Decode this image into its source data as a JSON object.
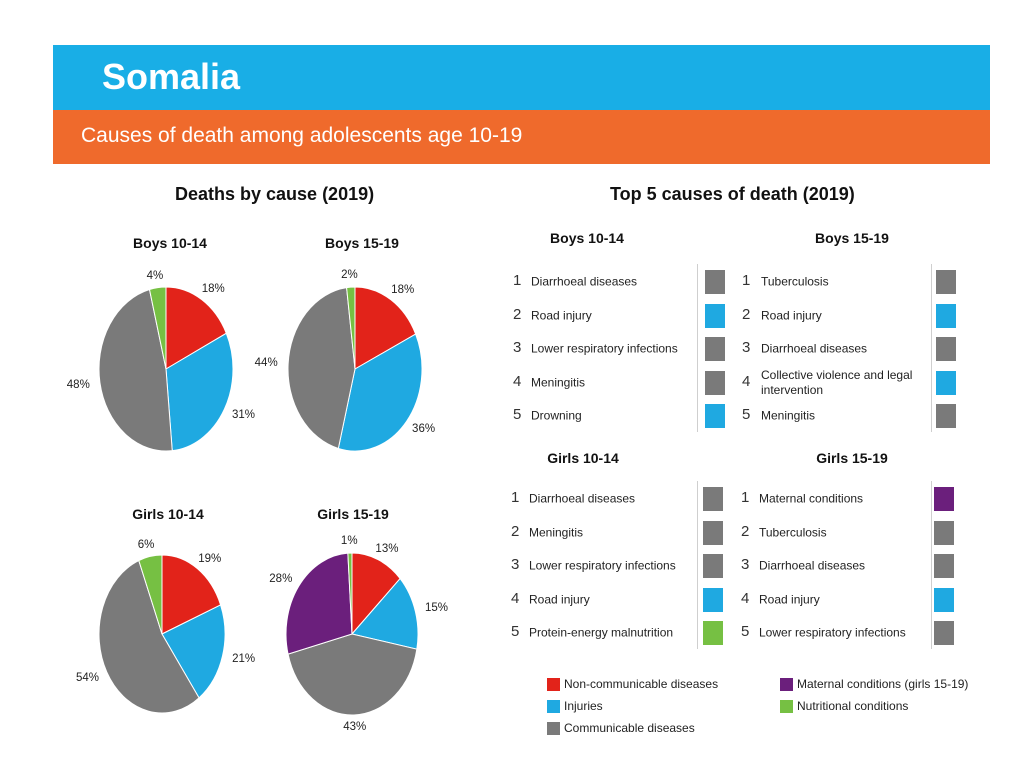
{
  "header": {
    "country": "Somalia",
    "subtitle": "Causes of death among adolescents age 10-19"
  },
  "colors": {
    "header_blue": "#19aee6",
    "header_orange": "#ef6a2c",
    "ncd": "#e2231a",
    "injuries": "#1fa9e1",
    "communicable": "#7a7a7a",
    "maternal": "#6b1f7c",
    "nutritional": "#76c043"
  },
  "left_title": "Deaths by cause (2019)",
  "right_title": "Top 5 causes of death (2019)",
  "chart_data": [
    {
      "type": "pie",
      "title": "Boys 10-14",
      "slices": [
        {
          "name": "Non-communicable diseases",
          "value": 18,
          "label": "18%",
          "color_key": "ncd"
        },
        {
          "name": "Injuries",
          "value": 31,
          "label": "31%",
          "color_key": "injuries"
        },
        {
          "name": "Communicable diseases",
          "value": 48,
          "label": "48%",
          "color_key": "communicable"
        },
        {
          "name": "Nutritional conditions",
          "value": 4,
          "label": "4%",
          "color_key": "nutritional"
        }
      ]
    },
    {
      "type": "pie",
      "title": "Boys 15-19",
      "slices": [
        {
          "name": "Non-communicable diseases",
          "value": 18,
          "label": "18%",
          "color_key": "ncd"
        },
        {
          "name": "Injuries",
          "value": 36,
          "label": "36%",
          "color_key": "injuries"
        },
        {
          "name": "Communicable diseases",
          "value": 44,
          "label": "44%",
          "color_key": "communicable"
        },
        {
          "name": "Nutritional conditions",
          "value": 2,
          "label": "2%",
          "color_key": "nutritional"
        }
      ]
    },
    {
      "type": "pie",
      "title": "Girls 10-14",
      "slices": [
        {
          "name": "Non-communicable diseases",
          "value": 19,
          "label": "19%",
          "color_key": "ncd"
        },
        {
          "name": "Injuries",
          "value": 21,
          "label": "21%",
          "color_key": "injuries"
        },
        {
          "name": "Communicable diseases",
          "value": 54,
          "label": "54%",
          "color_key": "communicable"
        },
        {
          "name": "Nutritional conditions",
          "value": 6,
          "label": "6%",
          "color_key": "nutritional"
        }
      ]
    },
    {
      "type": "pie",
      "title": "Girls 15-19",
      "slices": [
        {
          "name": "Non-communicable diseases",
          "value": 13,
          "label": "13%",
          "color_key": "ncd"
        },
        {
          "name": "Injuries",
          "value": 15,
          "label": "15%",
          "color_key": "injuries"
        },
        {
          "name": "Communicable diseases",
          "value": 43,
          "label": "43%",
          "color_key": "communicable"
        },
        {
          "name": "Maternal conditions",
          "value": 28,
          "label": "28%",
          "color_key": "maternal"
        },
        {
          "name": "Nutritional conditions",
          "value": 1,
          "label": "1%",
          "color_key": "nutritional"
        }
      ]
    }
  ],
  "top5": [
    {
      "title": "Boys 10-14",
      "items": [
        {
          "rank": "1",
          "cause": "Diarrhoeal diseases",
          "category": "communicable"
        },
        {
          "rank": "2",
          "cause": "Road injury",
          "category": "injuries"
        },
        {
          "rank": "3",
          "cause": "Lower respiratory infections",
          "category": "communicable"
        },
        {
          "rank": "4",
          "cause": "Meningitis",
          "category": "communicable"
        },
        {
          "rank": "5",
          "cause": "Drowning",
          "category": "injuries"
        }
      ]
    },
    {
      "title": "Boys 15-19",
      "items": [
        {
          "rank": "1",
          "cause": "Tuberculosis",
          "category": "communicable"
        },
        {
          "rank": "2",
          "cause": "Road injury",
          "category": "injuries"
        },
        {
          "rank": "3",
          "cause": "Diarrhoeal diseases",
          "category": "communicable"
        },
        {
          "rank": "4",
          "cause": "Collective violence and legal intervention",
          "category": "injuries"
        },
        {
          "rank": "5",
          "cause": "Meningitis",
          "category": "communicable"
        }
      ]
    },
    {
      "title": "Girls 10-14",
      "items": [
        {
          "rank": "1",
          "cause": "Diarrhoeal diseases",
          "category": "communicable"
        },
        {
          "rank": "2",
          "cause": "Meningitis",
          "category": "communicable"
        },
        {
          "rank": "3",
          "cause": "Lower respiratory infections",
          "category": "communicable"
        },
        {
          "rank": "4",
          "cause": "Road injury",
          "category": "injuries"
        },
        {
          "rank": "5",
          "cause": "Protein-energy malnutrition",
          "category": "nutritional"
        }
      ]
    },
    {
      "title": "Girls 15-19",
      "items": [
        {
          "rank": "1",
          "cause": "Maternal conditions",
          "category": "maternal"
        },
        {
          "rank": "2",
          "cause": "Tuberculosis",
          "category": "communicable"
        },
        {
          "rank": "3",
          "cause": "Diarrhoeal diseases",
          "category": "communicable"
        },
        {
          "rank": "4",
          "cause": "Road injury",
          "category": "injuries"
        },
        {
          "rank": "5",
          "cause": "Lower respiratory infections",
          "category": "communicable"
        }
      ]
    }
  ],
  "legend": [
    {
      "label": "Non-communicable diseases",
      "color_key": "ncd"
    },
    {
      "label": "Injuries",
      "color_key": "injuries"
    },
    {
      "label": "Communicable diseases",
      "color_key": "communicable"
    },
    {
      "label": "Maternal conditions (girls 15-19)",
      "color_key": "maternal"
    },
    {
      "label": "Nutritional conditions",
      "color_key": "nutritional"
    }
  ]
}
